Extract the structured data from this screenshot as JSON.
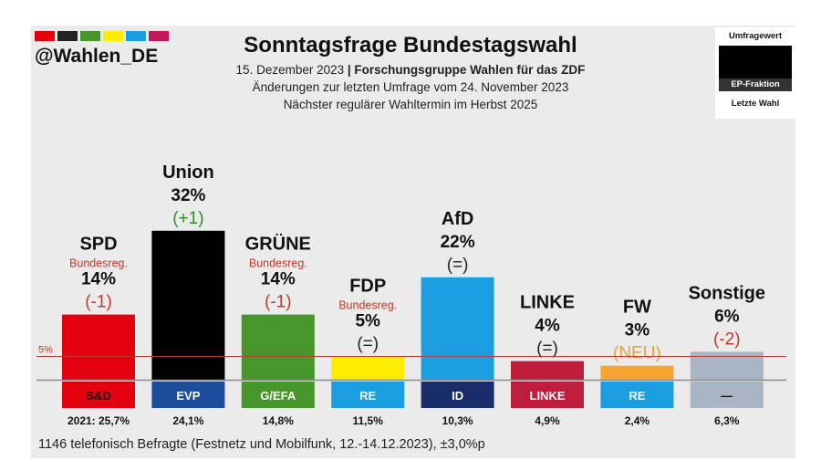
{
  "brand": {
    "handle": "@Wahlen_DE",
    "stripe_colors": [
      "#e3000f",
      "#222222",
      "#46962b",
      "#ffed00",
      "#1b9de2",
      "#c2185b"
    ]
  },
  "header": {
    "title": "Sonntagsfrage Bundestagswahl",
    "subtitle_date": "15. Dezember 2023",
    "subtitle_institute": "Forschungsgruppe Wahlen für das ZDF",
    "line2": "Änderungen zur letzten Umfrage vom 24. November 2023",
    "line3": "Nächster regulärer Wahltermin im Herbst 2025"
  },
  "legend": {
    "top": "Umfragewert",
    "middle": "EP-Fraktion",
    "bottom": "Letzte Wahl"
  },
  "footer": "1146 telefonisch Befragte (Festnetz und Mobilfunk, 12.-14.12.2023), ±3,0%p",
  "chart_data": {
    "type": "bar",
    "title": "Sonntagsfrage Bundestagswahl",
    "ylim": [
      0,
      32
    ],
    "threshold": {
      "value": 5,
      "label": "5%"
    },
    "categories": [
      "SPD",
      "Union",
      "GRÜNE",
      "FDP",
      "AfD",
      "LINKE",
      "FW",
      "Sonstige"
    ],
    "values": [
      14,
      32,
      14,
      5,
      22,
      4,
      3,
      6
    ],
    "value_labels": [
      "14%",
      "32%",
      "14%",
      "5%",
      "22%",
      "4%",
      "3%",
      "6%"
    ],
    "changes": [
      "(-1)",
      "(+1)",
      "(-1)",
      "(=)",
      "(=)",
      "(=)",
      "(NEU)",
      "(-2)"
    ],
    "change_colors": [
      "#c0392b",
      "#2e8b2e",
      "#c0392b",
      "#222222",
      "#222222",
      "#222222",
      "#e8a33d",
      "#c0392b"
    ],
    "notes": [
      "Bundesreg.",
      "",
      "Bundesreg.",
      "Bundesreg.",
      "",
      "",
      "",
      ""
    ],
    "colors": [
      "#e3000f",
      "#000000",
      "#46962b",
      "#ffed00",
      "#1b9de2",
      "#be1e3c",
      "#f7a531",
      "#a9b4c4"
    ],
    "ep_groups": [
      "S&D",
      "EVP",
      "G/EFA",
      "RE",
      "ID",
      "LINKE",
      "RE",
      "—"
    ],
    "ep_colors": [
      "#e3000f",
      "#1c4d9c",
      "#46962b",
      "#1b9de2",
      "#1a2d6b",
      "#be1e3c",
      "#1b9de2",
      "#a9b4c4"
    ],
    "last_election_prefix": "2021: ",
    "last_election": [
      "25,7%",
      "24,1%",
      "14,8%",
      "11,5%",
      "10,3%",
      "4,9%",
      "2,4%",
      "6,3%"
    ]
  }
}
